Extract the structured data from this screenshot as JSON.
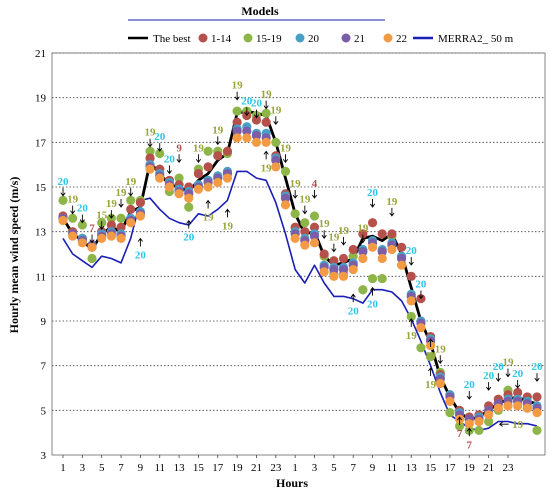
{
  "chart_data": {
    "type": "line",
    "xlabel": "Hours",
    "ylabel": "Hourly mean wind speed (m/s)",
    "ylim": [
      3,
      21
    ],
    "yticks": [
      3,
      5,
      7,
      9,
      11,
      13,
      15,
      17,
      19,
      21
    ],
    "x_tick_labels": [
      "1",
      "3",
      "5",
      "7",
      "9",
      "11",
      "13",
      "15",
      "17",
      "19",
      "21",
      "23",
      "1",
      "3",
      "5",
      "7",
      "9",
      "11",
      "13",
      "15",
      "17",
      "19",
      "21",
      "23"
    ],
    "grid": "horizontal-dotted",
    "legend": {
      "title": "Models",
      "entries": [
        {
          "label": "The best",
          "color": "#000000",
          "kind": "line"
        },
        {
          "label": "1-14",
          "color": "#b5504b",
          "kind": "marker"
        },
        {
          "label": "15-19",
          "color": "#8db548",
          "kind": "marker"
        },
        {
          "label": "20",
          "color": "#4a9fc7",
          "kind": "marker"
        },
        {
          "label": "21",
          "color": "#7b5ea7",
          "kind": "marker"
        },
        {
          "label": "22",
          "color": "#f39a45",
          "kind": "marker"
        },
        {
          "label": "MERRA2_ 50 m",
          "color": "#1a1fb5",
          "kind": "line"
        }
      ]
    },
    "series": [
      {
        "name": "The best",
        "color": "#000000",
        "values": [
          13.6,
          12.9,
          12.6,
          12.2,
          12.9,
          13.2,
          13.0,
          13.9,
          14.1,
          16.1,
          15.6,
          15.1,
          15.0,
          14.8,
          15.3,
          15.6,
          16.2,
          16.5,
          18.3,
          18.4,
          18.3,
          18.2,
          17.0,
          15.4,
          13.8,
          12.9,
          13.0,
          11.9,
          11.5,
          11.6,
          11.8,
          12.7,
          12.8,
          12.6,
          12.9,
          12.0,
          10.5,
          9.0,
          8.0,
          6.5,
          5.6,
          4.9,
          4.6,
          4.7,
          5.0,
          5.3,
          5.5,
          5.6,
          5.4,
          5.3
        ]
      },
      {
        "name": "1-14",
        "color": "#b5504b",
        "values": [
          13.7,
          13.0,
          12.7,
          12.3,
          13.0,
          13.3,
          13.2,
          14.0,
          14.3,
          16.3,
          15.8,
          15.3,
          15.1,
          15.0,
          15.6,
          15.9,
          16.4,
          16.6,
          17.9,
          18.2,
          18.0,
          17.9,
          16.4,
          14.7,
          13.2,
          13.0,
          13.2,
          12.0,
          11.7,
          11.8,
          12.2,
          12.9,
          13.4,
          12.9,
          12.9,
          12.3,
          11.0,
          10.0,
          8.3,
          6.6,
          5.7,
          5.0,
          4.7,
          4.8,
          5.2,
          5.5,
          5.7,
          5.8,
          5.6,
          5.6
        ]
      },
      {
        "name": "15-19",
        "color": "#8db548",
        "values": [
          14.4,
          13.6,
          13.3,
          11.8,
          13.4,
          13.6,
          13.6,
          14.4,
          14.4,
          16.6,
          16.5,
          14.8,
          15.4,
          14.1,
          15.8,
          16.6,
          16.6,
          16.5,
          18.4,
          18.4,
          18.2,
          18.3,
          17.0,
          15.7,
          13.8,
          13.4,
          13.7,
          11.9,
          11.1,
          11.1,
          11.9,
          10.4,
          10.9,
          10.9,
          12.8,
          11.9,
          9.2,
          7.8,
          7.4,
          6.7,
          4.9,
          4.3,
          4.1,
          4.1,
          4.5,
          5.0,
          5.9,
          5.4,
          5.1,
          4.1
        ]
      },
      {
        "name": "20",
        "color": "#4a9fc7",
        "values": [
          13.6,
          12.9,
          12.7,
          12.4,
          12.9,
          13.0,
          12.9,
          13.6,
          13.9,
          16.0,
          15.6,
          15.2,
          14.9,
          14.8,
          15.1,
          15.3,
          15.5,
          15.7,
          17.6,
          17.7,
          17.4,
          17.4,
          16.3,
          14.6,
          13.0,
          12.7,
          12.9,
          11.5,
          11.4,
          11.4,
          11.6,
          12.2,
          12.6,
          12.2,
          12.5,
          11.9,
          10.2,
          9.0,
          8.2,
          6.5,
          5.7,
          4.9,
          4.6,
          4.7,
          5.0,
          5.3,
          5.5,
          5.5,
          5.4,
          5.2
        ]
      },
      {
        "name": "21",
        "color": "#7b5ea7",
        "values": [
          13.6,
          12.9,
          12.6,
          12.4,
          12.8,
          12.9,
          12.8,
          13.5,
          13.8,
          15.9,
          15.5,
          15.1,
          14.8,
          14.7,
          15.0,
          15.2,
          15.4,
          15.6,
          17.5,
          17.5,
          17.3,
          17.2,
          16.2,
          14.5,
          12.9,
          12.6,
          12.8,
          11.4,
          11.3,
          11.3,
          11.5,
          12.1,
          12.5,
          12.1,
          12.4,
          11.8,
          10.1,
          8.9,
          8.1,
          6.4,
          5.6,
          4.8,
          4.6,
          4.6,
          5.0,
          5.3,
          5.4,
          5.4,
          5.3,
          5.1
        ]
      },
      {
        "name": "22",
        "color": "#f39a45",
        "values": [
          13.5,
          12.8,
          12.5,
          12.3,
          12.7,
          12.8,
          12.7,
          13.4,
          13.7,
          15.8,
          15.4,
          15.0,
          14.7,
          14.5,
          14.9,
          15.0,
          15.2,
          15.4,
          17.2,
          17.2,
          17.0,
          17.0,
          15.9,
          14.2,
          12.7,
          12.4,
          12.5,
          11.2,
          11.0,
          11.0,
          11.3,
          11.8,
          12.3,
          11.8,
          12.2,
          11.5,
          9.9,
          8.7,
          7.9,
          6.2,
          5.4,
          4.6,
          4.4,
          4.5,
          4.8,
          5.1,
          5.2,
          5.2,
          5.1,
          4.9
        ]
      },
      {
        "name": "MERRA2_ 50 m",
        "color": "#1a1fb5",
        "values": [
          12.7,
          12.0,
          11.7,
          11.4,
          11.9,
          11.8,
          11.6,
          12.7,
          14.4,
          14.5,
          14.0,
          13.6,
          13.4,
          13.3,
          13.8,
          13.7,
          14.0,
          14.4,
          15.7,
          15.7,
          15.4,
          15.3,
          14.3,
          12.9,
          11.3,
          10.7,
          11.5,
          10.7,
          10.1,
          10.1,
          10.0,
          9.8,
          10.4,
          10.4,
          10.3,
          9.9,
          9.1,
          8.1,
          7.0,
          5.8,
          4.8,
          4.5,
          4.2,
          4.1,
          4.2,
          4.5,
          4.5,
          4.4,
          4.4,
          4.3
        ]
      }
    ],
    "annotations": [
      {
        "text": "20",
        "x": 1,
        "y": 15.1,
        "color": "#2cc6e8",
        "dir": "down"
      },
      {
        "text": "19",
        "x": 2,
        "y": 14.3,
        "color": "#9aa53a",
        "dir": "down"
      },
      {
        "text": "20",
        "x": 3,
        "y": 13.9,
        "color": "#2cc6e8",
        "dir": "down"
      },
      {
        "text": "7",
        "x": 4,
        "y": 13.0,
        "color": "#b5504b",
        "dir": "down"
      },
      {
        "text": "15",
        "x": 5,
        "y": 13.6,
        "color": "#9aa53a",
        "dir": "down"
      },
      {
        "text": "19",
        "x": 6,
        "y": 14.1,
        "color": "#9aa53a",
        "dir": "down"
      },
      {
        "text": "19",
        "x": 7,
        "y": 14.6,
        "color": "#9aa53a",
        "dir": "down"
      },
      {
        "text": "19",
        "x": 8,
        "y": 15.1,
        "color": "#9aa53a",
        "dir": "down"
      },
      {
        "text": "20",
        "x": 9,
        "y": 11.8,
        "color": "#2cc6e8",
        "dir": "up"
      },
      {
        "text": "19",
        "x": 10,
        "y": 17.3,
        "color": "#9aa53a",
        "dir": "down"
      },
      {
        "text": "20",
        "x": 11,
        "y": 17.1,
        "color": "#2cc6e8",
        "dir": "down"
      },
      {
        "text": "20",
        "x": 12,
        "y": 16.1,
        "color": "#2cc6e8",
        "dir": "down"
      },
      {
        "text": "9",
        "x": 13,
        "y": 16.6,
        "color": "#b5504b",
        "dir": "down"
      },
      {
        "text": "20",
        "x": 14,
        "y": 12.6,
        "color": "#2cc6e8",
        "dir": "up"
      },
      {
        "text": "19",
        "x": 15,
        "y": 16.6,
        "color": "#9aa53a",
        "dir": "down"
      },
      {
        "text": "19",
        "x": 16,
        "y": 13.5,
        "color": "#9aa53a",
        "dir": "up"
      },
      {
        "text": "19",
        "x": 17,
        "y": 17.4,
        "color": "#9aa53a",
        "dir": "down"
      },
      {
        "text": "19",
        "x": 18,
        "y": 13.1,
        "color": "#9aa53a",
        "dir": "up"
      },
      {
        "text": "19",
        "x": 19,
        "y": 19.4,
        "color": "#9aa53a",
        "dir": "down"
      },
      {
        "text": "20",
        "x": 20,
        "y": 18.7,
        "color": "#2cc6e8",
        "dir": "down"
      },
      {
        "text": "20",
        "x": 21,
        "y": 18.6,
        "color": "#2cc6e8",
        "dir": "down"
      },
      {
        "text": "19",
        "x": 22,
        "y": 19.0,
        "color": "#9aa53a",
        "dir": "down"
      },
      {
        "text": "19",
        "x": 23,
        "y": 18.3,
        "color": "#9aa53a",
        "dir": "down"
      },
      {
        "text": "19",
        "x": 22,
        "y": 15.7,
        "color": "#9aa53a",
        "dir": "up"
      },
      {
        "text": "19",
        "x": 24,
        "y": 16.6,
        "color": "#9aa53a",
        "dir": "down"
      },
      {
        "text": "19",
        "x": 25,
        "y": 15.0,
        "color": "#9aa53a",
        "dir": "down"
      },
      {
        "text": "19",
        "x": 26,
        "y": 14.3,
        "color": "#9aa53a",
        "dir": "down"
      },
      {
        "text": "4",
        "x": 27,
        "y": 15.0,
        "color": "#b5504b",
        "dir": "down"
      },
      {
        "text": "19",
        "x": 28,
        "y": 13.2,
        "color": "#9aa53a",
        "dir": "down"
      },
      {
        "text": "19",
        "x": 29,
        "y": 12.6,
        "color": "#9aa53a",
        "dir": "down"
      },
      {
        "text": "19",
        "x": 30,
        "y": 12.9,
        "color": "#9aa53a",
        "dir": "down"
      },
      {
        "text": "19",
        "x": 32,
        "y": 13.0,
        "color": "#9aa53a",
        "dir": "down"
      },
      {
        "text": "20",
        "x": 31,
        "y": 9.3,
        "color": "#2cc6e8",
        "dir": "up"
      },
      {
        "text": "20",
        "x": 33,
        "y": 14.6,
        "color": "#2cc6e8",
        "dir": "down"
      },
      {
        "text": "19",
        "x": 35,
        "y": 14.2,
        "color": "#9aa53a",
        "dir": "down"
      },
      {
        "text": "20",
        "x": 33,
        "y": 9.6,
        "color": "#2cc6e8",
        "dir": "up"
      },
      {
        "text": "20",
        "x": 37,
        "y": 12.0,
        "color": "#2cc6e8",
        "dir": "down"
      },
      {
        "text": "19",
        "x": 37,
        "y": 8.2,
        "color": "#9aa53a",
        "dir": "up"
      },
      {
        "text": "20",
        "x": 38,
        "y": 10.5,
        "color": "#2cc6e8",
        "dir": "down"
      },
      {
        "text": "19",
        "x": 39,
        "y": 7.3,
        "color": "#9aa53a",
        "dir": "up"
      },
      {
        "text": "19",
        "x": 40,
        "y": 7.6,
        "color": "#9aa53a",
        "dir": "down"
      },
      {
        "text": "19",
        "x": 39,
        "y": 6.0,
        "color": "#9aa53a",
        "dir": "up"
      },
      {
        "text": "7",
        "x": 42,
        "y": 3.8,
        "color": "#b5504b",
        "dir": "up"
      },
      {
        "text": "20",
        "x": 43,
        "y": 6.0,
        "color": "#2cc6e8",
        "dir": "down"
      },
      {
        "text": "7",
        "x": 43,
        "y": 3.3,
        "color": "#b5504b",
        "dir": "up"
      },
      {
        "text": "20",
        "x": 45,
        "y": 6.4,
        "color": "#2cc6e8",
        "dir": "down"
      },
      {
        "text": "20",
        "x": 46,
        "y": 6.8,
        "color": "#2cc6e8",
        "dir": "down"
      },
      {
        "text": "19",
        "x": 47,
        "y": 7.0,
        "color": "#9aa53a",
        "dir": "down"
      },
      {
        "text": "19",
        "x": 48,
        "y": 4.2,
        "color": "#9aa53a",
        "dir": "left"
      },
      {
        "text": "20",
        "x": 50,
        "y": 6.8,
        "color": "#2cc6e8",
        "dir": "down"
      },
      {
        "text": "20",
        "x": 48,
        "y": 6.5,
        "color": "#2cc6e8",
        "dir": "down"
      }
    ]
  }
}
